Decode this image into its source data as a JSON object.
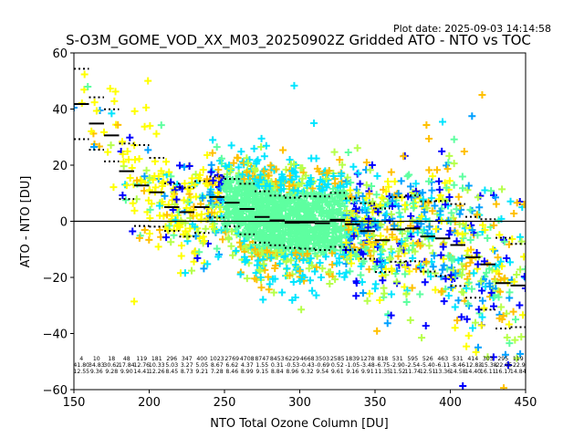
{
  "chart_data": {
    "type": "scatter",
    "title": "S-O3M_GOME_VOD_XX_M03_20250902Z Gridded ATO - NTO vs TOC",
    "subtitle": "Plot date: 2025-09-03 14:14:58",
    "xlabel": "NTO Total Ozone Column [DU]",
    "ylabel": "ATO - NTO [DU]",
    "xlim": [
      150,
      450
    ],
    "ylim": [
      -60,
      60
    ],
    "xticks": [
      150,
      200,
      250,
      300,
      350,
      400,
      450
    ],
    "yticks": [
      -60,
      -40,
      -20,
      0,
      20,
      40,
      60
    ],
    "zero_line": 0,
    "colormap": [
      "#0000ff",
      "#00a0ff",
      "#00e5ff",
      "#5effa0",
      "#b6ff4a",
      "#ffff00",
      "#ffc000"
    ],
    "bins": {
      "x_center": [
        155,
        165,
        175,
        185,
        195,
        205,
        215,
        225,
        235,
        245,
        255,
        265,
        275,
        285,
        295,
        305,
        315,
        325,
        335,
        345,
        355,
        365,
        375,
        385,
        395,
        405,
        415,
        425,
        435,
        445
      ],
      "count": [
        "4",
        "10",
        "18",
        "48",
        "119",
        "181",
        "296",
        "347",
        "400",
        "1023",
        "2769",
        "4708",
        "8747",
        "8453",
        "6229",
        "4668",
        "3503",
        "2585",
        "1839",
        "1278",
        "818",
        "531",
        "595",
        "526",
        "463",
        "531",
        "414",
        "303",
        "295",
        "119"
      ],
      "mean": [
        "41.80",
        "34.83",
        "30.62",
        "17.84",
        "12.76",
        "10.33",
        "5.03",
        "3.27",
        "5.05",
        "8.67",
        "6.62",
        "4.37",
        "1.55",
        "0.31",
        "-0.53",
        "-0.43",
        "-0.69",
        "0.52",
        "-1.05",
        "-3.48",
        "-6.75",
        "-2.90",
        "-2.54",
        "-5.40",
        "-6.11",
        "-8.46",
        "-12.83",
        "-15.38",
        "-22.05",
        "-22.9"
      ],
      "std": [
        "12.55",
        "9.36",
        "9.28",
        "9.90",
        "14.41",
        "12.26",
        "8.45",
        "8.73",
        "9.21",
        "7.28",
        "8.46",
        "8.99",
        "9.15",
        "8.84",
        "8.96",
        "9.32",
        "9.54",
        "9.61",
        "9.16",
        "9.91",
        "11.35",
        "11.52",
        "11.74",
        "12.51",
        "13.36",
        "14.58",
        "14.40",
        "16.11",
        "16.17",
        "14.84"
      ]
    }
  }
}
